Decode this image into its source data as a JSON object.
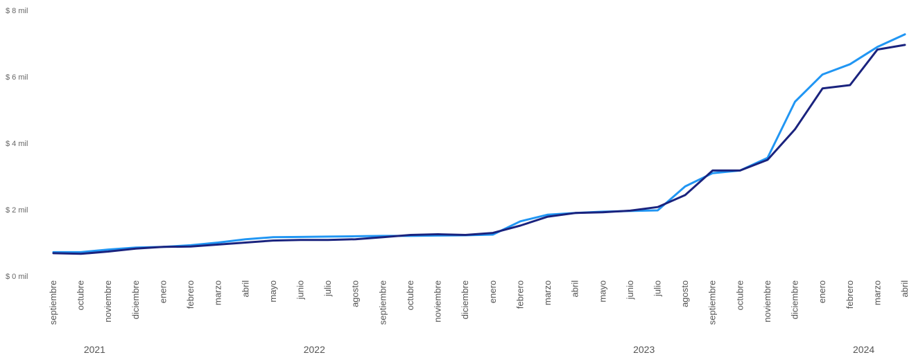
{
  "chart_data": {
    "type": "line",
    "title": "",
    "xlabel": "",
    "ylabel": "",
    "ylim": [
      0,
      8000
    ],
    "yticks": [
      {
        "value": 0,
        "label": "$ 0 mil"
      },
      {
        "value": 2000,
        "label": "$ 2 mil"
      },
      {
        "value": 4000,
        "label": "$ 4 mil"
      },
      {
        "value": 6000,
        "label": "$ 6 mil"
      },
      {
        "value": 8000,
        "label": "$ 8 mil"
      }
    ],
    "grid": false,
    "legend": "none",
    "categories": [
      "septiembre",
      "octubre",
      "noviembre",
      "diciembre",
      "enero",
      "febrero",
      "marzo",
      "abril",
      "mayo",
      "junio",
      "julio",
      "agosto",
      "septiembre",
      "octubre",
      "noviembre",
      "diciembre",
      "enero",
      "febrero",
      "marzo",
      "abril",
      "mayo",
      "junio",
      "julio",
      "agosto",
      "septiembre",
      "octubre",
      "noviembre",
      "diciembre",
      "enero",
      "febrero",
      "marzo",
      "abril"
    ],
    "year_groups": [
      {
        "label": "2021",
        "start": 0,
        "end": 3
      },
      {
        "label": "2022",
        "start": 4,
        "end": 15
      },
      {
        "label": "2023",
        "start": 16,
        "end": 27
      },
      {
        "label": "2024",
        "start": 28,
        "end": 31
      }
    ],
    "series": [
      {
        "color": "#2196F3",
        "values": [
          720,
          720,
          800,
          860,
          880,
          930,
          1010,
          1110,
          1170,
          1180,
          1190,
          1200,
          1210,
          1210,
          1220,
          1230,
          1250,
          1650,
          1850,
          1900,
          1940,
          1960,
          1980,
          2700,
          3100,
          3180,
          3560,
          5250,
          6070,
          6380,
          6900,
          7280
        ]
      },
      {
        "color": "#1A237E",
        "values": [
          690,
          670,
          740,
          830,
          880,
          890,
          950,
          1010,
          1070,
          1090,
          1090,
          1110,
          1170,
          1240,
          1260,
          1240,
          1300,
          1520,
          1790,
          1900,
          1920,
          1970,
          2080,
          2440,
          3180,
          3180,
          3500,
          4420,
          5650,
          5750,
          6820,
          6960
        ]
      }
    ]
  }
}
